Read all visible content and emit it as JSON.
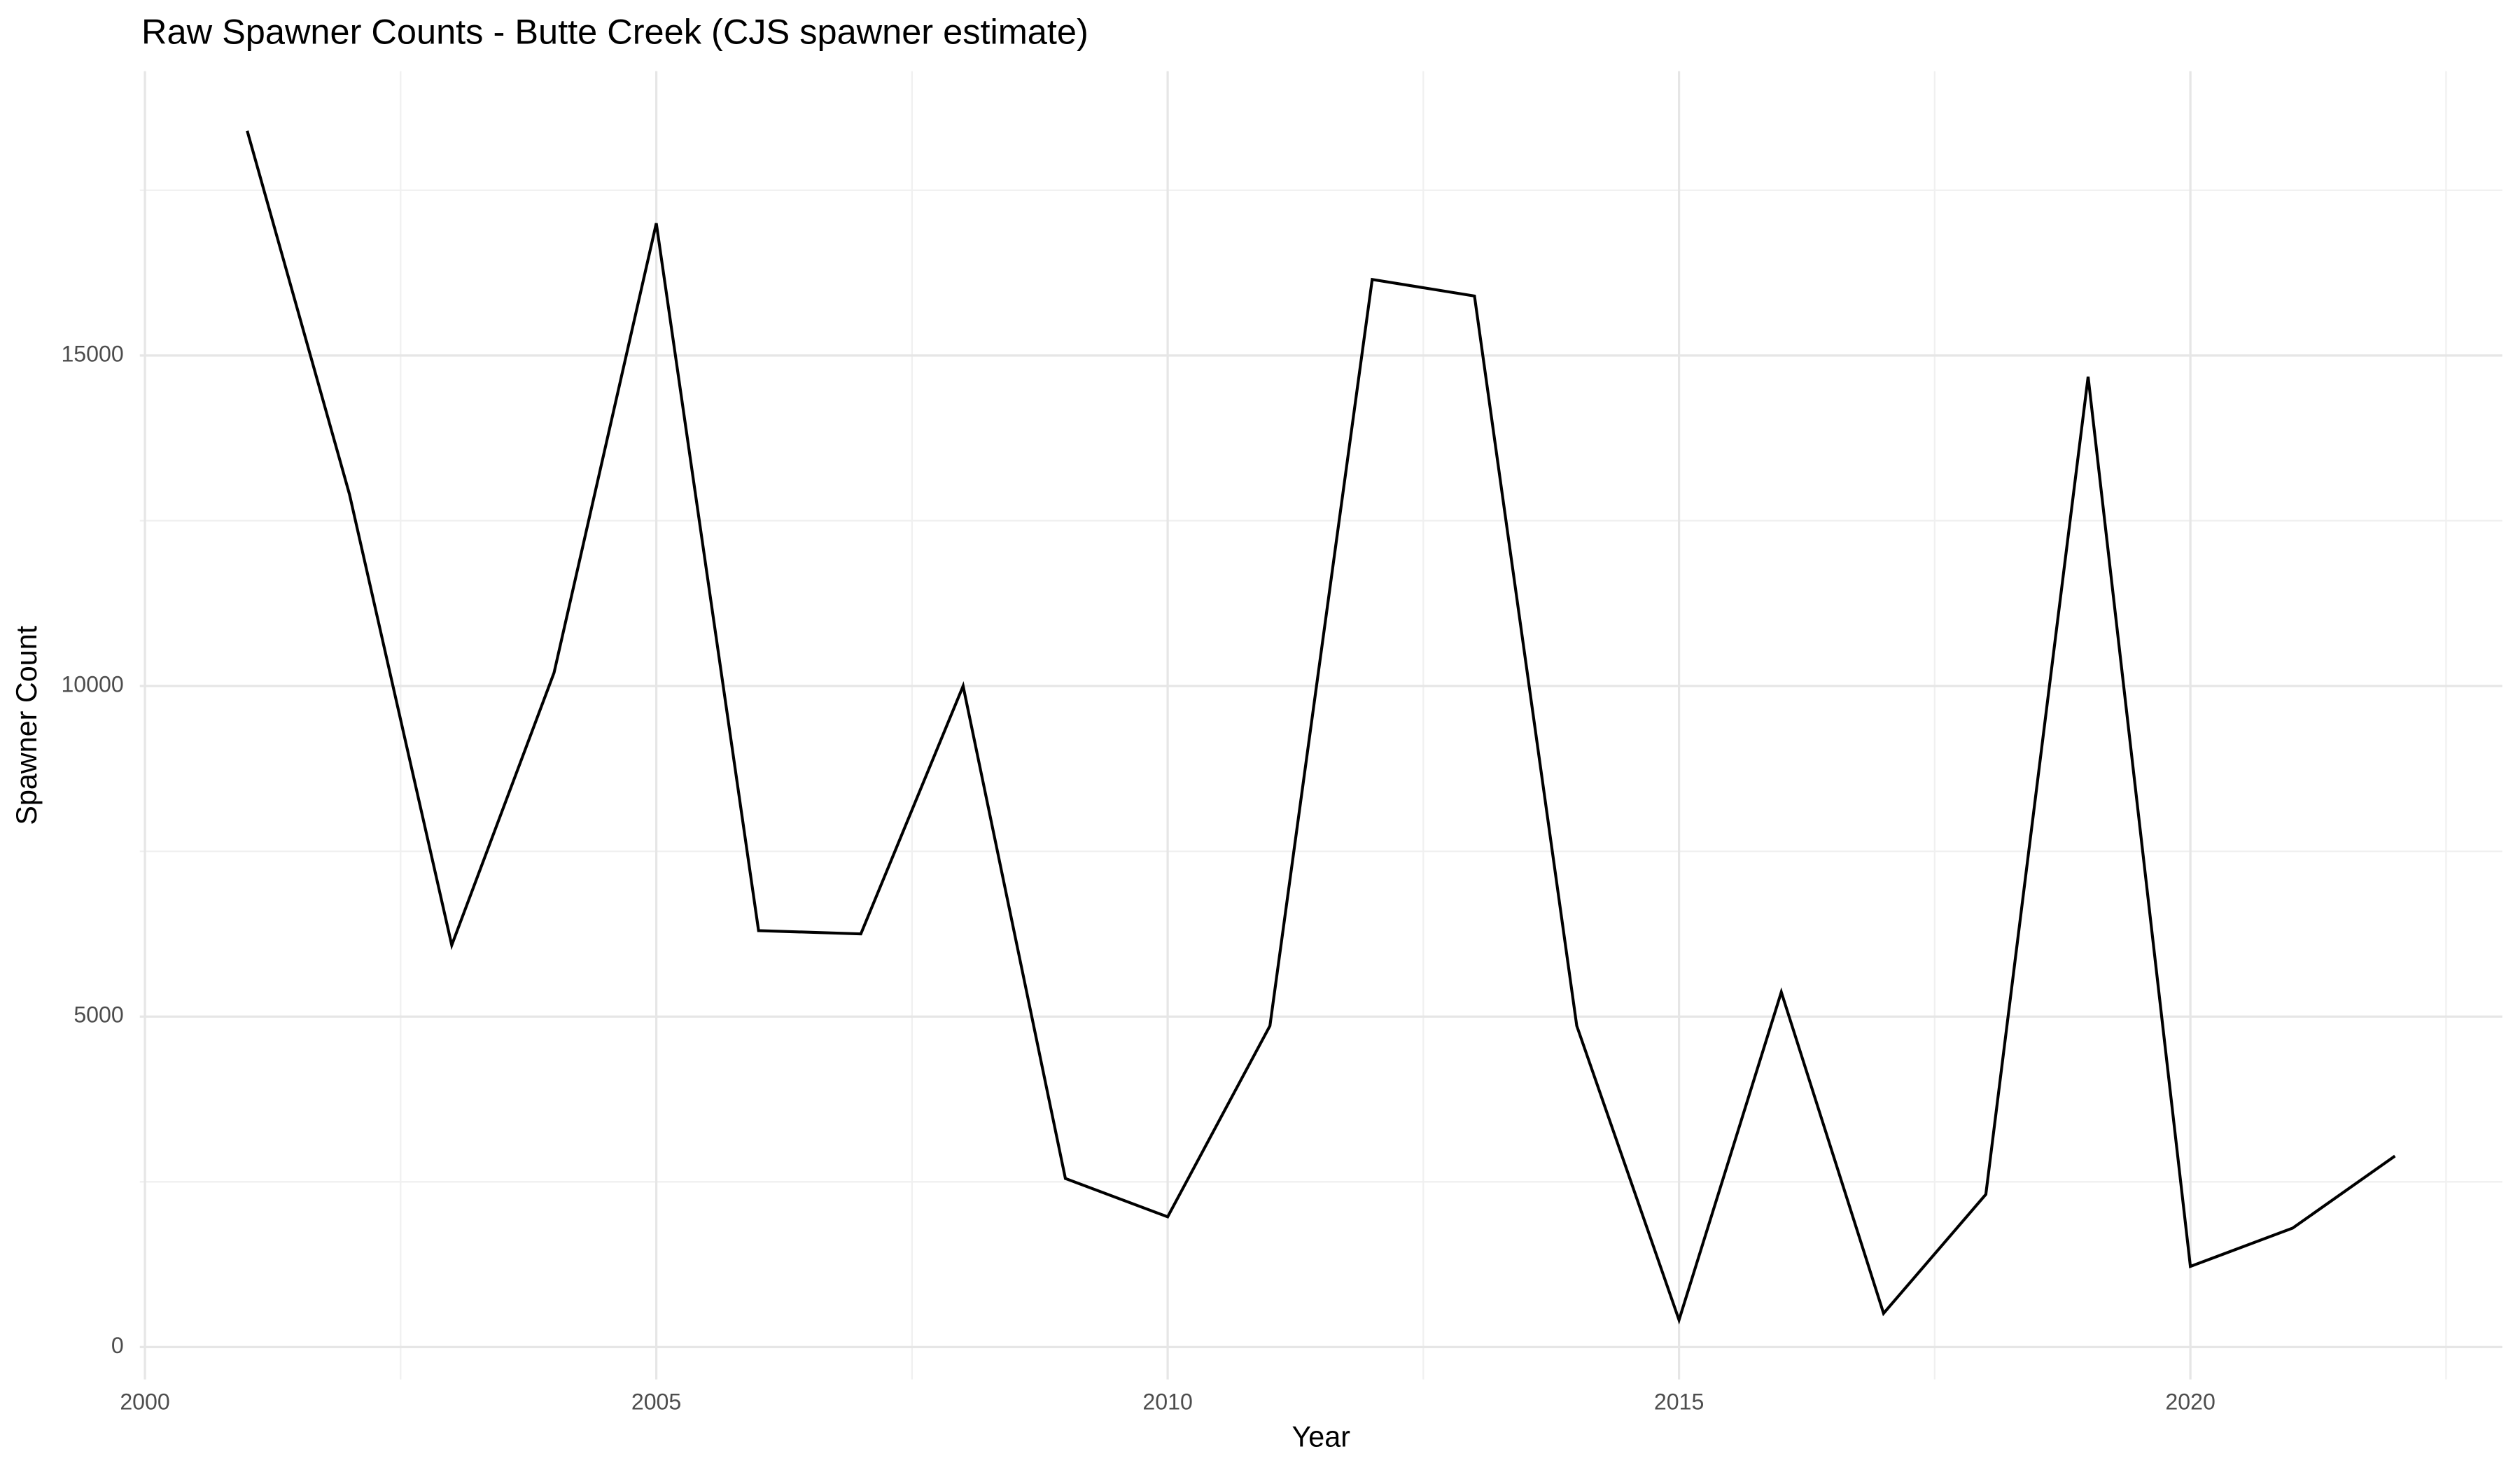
{
  "chart_data": {
    "type": "line",
    "title": "Raw Spawner Counts - Butte Creek (CJS spawner estimate)",
    "x_label": "Year",
    "y_label": "Spawner Count",
    "x": [
      2001,
      2002,
      2003,
      2004,
      2005,
      2006,
      2007,
      2008,
      2009,
      2010,
      2011,
      2012,
      2013,
      2014,
      2015,
      2016,
      2017,
      2018,
      2019,
      2020,
      2021,
      2022
    ],
    "series": [
      {
        "name": "Spawner Count",
        "color": "#000000",
        "values": [
          18400,
          12900,
          6080,
          10200,
          17000,
          6300,
          6250,
          10000,
          2550,
          1970,
          4860,
          16150,
          15900,
          4860,
          410,
          5370,
          510,
          2310,
          14680,
          1220,
          1800,
          2890
        ]
      }
    ],
    "xlim": [
      1999.95,
      2023.05
    ],
    "ylim": [
      -490,
      19300
    ],
    "xticks": [
      2000,
      2005,
      2010,
      2015,
      2020
    ],
    "yticks": [
      0,
      5000,
      10000,
      15000
    ],
    "x_minor_ticks": [
      2002.5,
      2007.5,
      2012.5,
      2017.5,
      2022.5
    ],
    "y_minor_ticks": [
      2500,
      7500,
      12500,
      17500
    ],
    "grid": true
  }
}
